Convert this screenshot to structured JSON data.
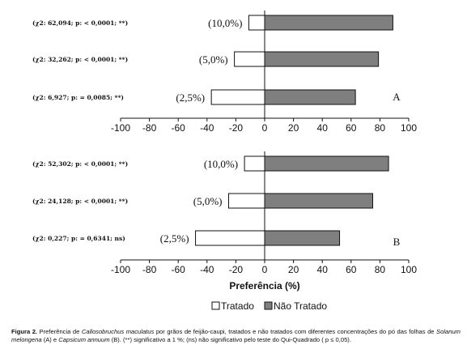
{
  "chart_data": [
    {
      "type": "bar",
      "orientation": "horizontal",
      "panel_label": "A",
      "categories": [
        "(10,0%)",
        "(5,0%)",
        "(2,5%)"
      ],
      "stats": [
        "(χ2: 62,094; p: < 0,0001; **)",
        "(χ2: 32,262; p: < 0,0001; **)",
        "(χ2: 6,927; p: = 0,0085; **)"
      ],
      "series": [
        {
          "name": "Tratado",
          "color": "#ffffff",
          "values": [
            -11,
            -21,
            -37
          ]
        },
        {
          "name": "Não Tratado",
          "color": "#7f7f7f",
          "values": [
            89,
            79,
            63
          ]
        }
      ],
      "xlim": [
        -100,
        100
      ],
      "xticks": [
        "-100",
        "-80",
        "-60",
        "-40",
        "-20",
        "0",
        "20",
        "40",
        "60",
        "80",
        "100"
      ]
    },
    {
      "type": "bar",
      "orientation": "horizontal",
      "panel_label": "B",
      "categories": [
        "(10,0%)",
        "(5,0%)",
        "(2,5%)"
      ],
      "stats": [
        "(χ2: 52,302; p: < 0,0001; **)",
        "(χ2: 24,128; p: < 0,0001; **)",
        "(χ2: 0,227; p: = 0,6341; ns)"
      ],
      "series": [
        {
          "name": "Tratado",
          "color": "#ffffff",
          "values": [
            -14,
            -25,
            -48
          ]
        },
        {
          "name": "Não Tratado",
          "color": "#7f7f7f",
          "values": [
            86,
            75,
            52
          ]
        }
      ],
      "xlim": [
        -100,
        100
      ],
      "xticks": [
        "-100",
        "-80",
        "-60",
        "-40",
        "-20",
        "0",
        "20",
        "40",
        "60",
        "80",
        "100"
      ],
      "xlabel": "Preferência (%)"
    }
  ],
  "legend": [
    {
      "label": "Tratado",
      "color": "#ffffff"
    },
    {
      "label": "Não Tratado",
      "color": "#7f7f7f"
    }
  ],
  "caption": {
    "label": "Figura 2.",
    "text_1": " Preferência de ",
    "species_1": "Callosobruchus maculatus",
    "text_2": " por grãos de feijão-caupi, tratados e não tratados com diferentes concentrações do pó das folhas de ",
    "species_2": "Solanum melongena",
    "text_3": " (A) e ",
    "species_3": "Capsicum annuum",
    "text_4": " (B). (**) significativo a 1 %; (ns) não significativo pelo teste do Qui-Quadrado ( p ≤ 0,05)."
  }
}
